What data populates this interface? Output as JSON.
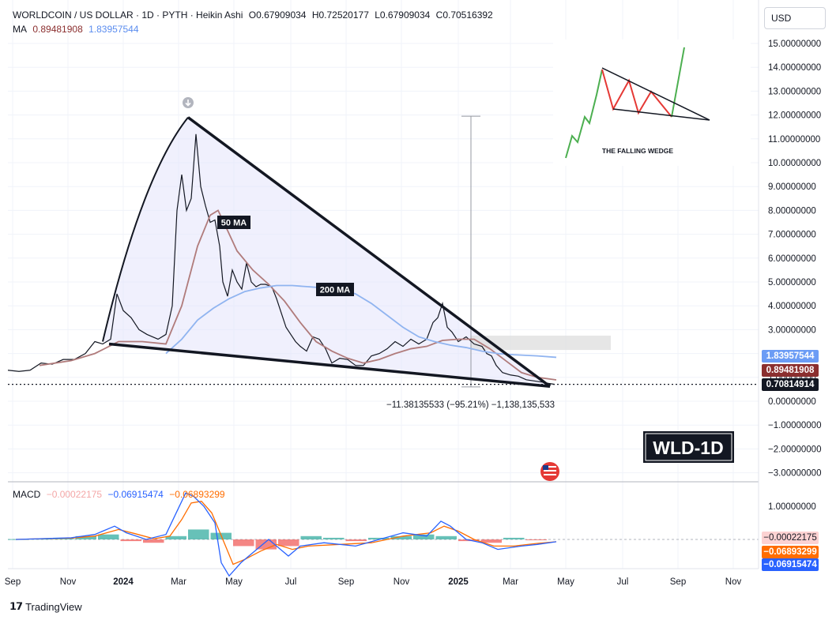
{
  "header": {
    "symbol": "WORLDCOIN / US DOLLAR · 1D · PYTH · Heikin Ashi",
    "o": "O0.67909034",
    "h": "H0.72520177",
    "l": "L0.67909034",
    "c": "C0.70516392",
    "ma_label": "MA",
    "ma_value1": "0.89481908",
    "ma_value2": "1.83957544"
  },
  "currency_button": "USD",
  "macd_header": {
    "label": "MACD",
    "v1": "−0.00022175",
    "v2": "−0.06915474",
    "v3": "−0.06893299"
  },
  "annotations": {
    "ma50": "50 MA",
    "ma200": "200 MA",
    "measure": "−11.38135533 (−95.21%) −1,138,135,533",
    "ticker_box": "WLD-1D",
    "inset_caption": "THE FALLING WEDGE"
  },
  "price_badges": {
    "ma200": "1.83957544",
    "ma50": "0.89481908",
    "last": "0.70814914"
  },
  "macd_badges": {
    "hist": "−0.00022175",
    "signal": "−0.06893299",
    "macd": "−0.06915474"
  },
  "brand": "TradingView",
  "colors": {
    "price": "#131722",
    "ma50": "#b07b7b",
    "ma200": "#90b4f0",
    "wedge_fill": "#e3e3fb",
    "macd_line": "#2962ff",
    "signal_line": "#ff6d00",
    "hist_pos": "#26a69a",
    "hist_neg": "#ef5350",
    "badge_ma200": "#6b9cf5",
    "badge_ma50": "#8b2f2f",
    "badge_last": "#131722"
  },
  "chart_data": {
    "type": "line",
    "title": "WORLDCOIN / US DOLLAR · 1D · PYTH · Heikin Ashi",
    "price_axis": {
      "ticks": [
        "15.00000000",
        "14.00000000",
        "13.00000000",
        "12.00000000",
        "11.00000000",
        "10.00000000",
        "9.00000000",
        "8.00000000",
        "7.00000000",
        "6.00000000",
        "5.00000000",
        "4.00000000",
        "3.00000000",
        "2.00000000",
        "1.00000000",
        "0.00000000",
        "−1.00000000",
        "−2.00000000",
        "−3.00000000"
      ],
      "ylim": [
        -3.3,
        15.6
      ]
    },
    "macd_axis": {
      "ticks": [
        "1.00000000"
      ]
    },
    "time_axis": {
      "ticks": [
        "Sep",
        "Nov",
        "2024",
        "Mar",
        "May",
        "Jul",
        "Sep",
        "Nov",
        "2025",
        "Mar",
        "May",
        "Jul",
        "Sep",
        "Nov"
      ],
      "bold": [
        "2024",
        "2025"
      ]
    },
    "series": [
      {
        "name": "Price",
        "points": [
          [
            0,
            1.3
          ],
          [
            14,
            1.25
          ],
          [
            28,
            1.3
          ],
          [
            42,
            1.6
          ],
          [
            56,
            1.55
          ],
          [
            70,
            1.75
          ],
          [
            84,
            1.75
          ],
          [
            98,
            2.0
          ],
          [
            110,
            2.5
          ],
          [
            120,
            2.4
          ],
          [
            130,
            2.6
          ],
          [
            138,
            4.5
          ],
          [
            146,
            3.8
          ],
          [
            156,
            3.5
          ],
          [
            166,
            3.0
          ],
          [
            176,
            2.8
          ],
          [
            190,
            2.6
          ],
          [
            200,
            2.8
          ],
          [
            208,
            4.0
          ],
          [
            214,
            8.0
          ],
          [
            220,
            9.5
          ],
          [
            226,
            8.0
          ],
          [
            232,
            8.5
          ],
          [
            238,
            11.2
          ],
          [
            244,
            9.0
          ],
          [
            250,
            8.2
          ],
          [
            256,
            7.5
          ],
          [
            262,
            7.6
          ],
          [
            268,
            6.5
          ],
          [
            272,
            5.0
          ],
          [
            278,
            4.4
          ],
          [
            284,
            5.5
          ],
          [
            290,
            5.0
          ],
          [
            296,
            4.7
          ],
          [
            302,
            5.8
          ],
          [
            308,
            5.0
          ],
          [
            314,
            4.8
          ],
          [
            320,
            4.9
          ],
          [
            326,
            4.9
          ],
          [
            334,
            4.8
          ],
          [
            340,
            4.3
          ],
          [
            346,
            3.7
          ],
          [
            352,
            3.1
          ],
          [
            358,
            2.8
          ],
          [
            364,
            2.5
          ],
          [
            370,
            2.3
          ],
          [
            378,
            2.1
          ],
          [
            386,
            2.7
          ],
          [
            394,
            2.6
          ],
          [
            402,
            2.2
          ],
          [
            410,
            1.6
          ],
          [
            420,
            1.8
          ],
          [
            430,
            1.75
          ],
          [
            440,
            1.5
          ],
          [
            450,
            1.5
          ],
          [
            460,
            1.9
          ],
          [
            470,
            2.0
          ],
          [
            480,
            2.2
          ],
          [
            490,
            2.5
          ],
          [
            500,
            2.3
          ],
          [
            510,
            2.6
          ],
          [
            520,
            2.4
          ],
          [
            530,
            2.6
          ],
          [
            538,
            3.3
          ],
          [
            544,
            3.5
          ],
          [
            550,
            4.1
          ],
          [
            556,
            3.1
          ],
          [
            562,
            2.9
          ],
          [
            570,
            2.5
          ],
          [
            580,
            2.7
          ],
          [
            590,
            2.4
          ],
          [
            600,
            2.3
          ],
          [
            606,
            2.0
          ],
          [
            612,
            1.9
          ],
          [
            618,
            1.5
          ],
          [
            626,
            1.2
          ],
          [
            636,
            1.1
          ],
          [
            646,
            1.05
          ],
          [
            656,
            0.9
          ],
          [
            666,
            0.85
          ],
          [
            676,
            0.8
          ],
          [
            684,
            0.75
          ],
          [
            692,
            0.70816
          ]
        ]
      },
      {
        "name": "50 MA",
        "points": [
          [
            40,
            1.5
          ],
          [
            80,
            1.7
          ],
          [
            110,
            2.0
          ],
          [
            140,
            2.5
          ],
          [
            170,
            2.5
          ],
          [
            200,
            2.4
          ],
          [
            220,
            4.0
          ],
          [
            240,
            6.5
          ],
          [
            256,
            7.8
          ],
          [
            266,
            8.0
          ],
          [
            276,
            7.3
          ],
          [
            290,
            6.3
          ],
          [
            310,
            5.5
          ],
          [
            330,
            4.9
          ],
          [
            350,
            4.2
          ],
          [
            370,
            3.3
          ],
          [
            390,
            2.5
          ],
          [
            410,
            2.1
          ],
          [
            430,
            1.8
          ],
          [
            450,
            1.6
          ],
          [
            470,
            1.75
          ],
          [
            490,
            2.0
          ],
          [
            510,
            2.2
          ],
          [
            530,
            2.3
          ],
          [
            550,
            2.55
          ],
          [
            570,
            2.6
          ],
          [
            590,
            2.6
          ],
          [
            610,
            2.2
          ],
          [
            630,
            1.7
          ],
          [
            650,
            1.2
          ],
          [
            670,
            1.0
          ],
          [
            694,
            0.89481908
          ]
        ]
      },
      {
        "name": "200 MA",
        "points": [
          [
            200,
            2.0
          ],
          [
            220,
            2.6
          ],
          [
            240,
            3.4
          ],
          [
            260,
            3.9
          ],
          [
            280,
            4.3
          ],
          [
            300,
            4.6
          ],
          [
            320,
            4.75
          ],
          [
            340,
            4.85
          ],
          [
            360,
            4.85
          ],
          [
            380,
            4.8
          ],
          [
            400,
            4.75
          ],
          [
            420,
            4.7
          ],
          [
            440,
            4.5
          ],
          [
            460,
            4.1
          ],
          [
            480,
            3.6
          ],
          [
            500,
            3.1
          ],
          [
            520,
            2.7
          ],
          [
            540,
            2.5
          ],
          [
            560,
            2.35
          ],
          [
            580,
            2.25
          ],
          [
            600,
            2.1
          ],
          [
            620,
            2.0
          ],
          [
            640,
            1.95
          ],
          [
            670,
            1.9
          ],
          [
            694,
            1.83957544
          ]
        ]
      }
    ],
    "macd": {
      "macd_line": [
        [
          10,
          0
        ],
        [
          40,
          0.02
        ],
        [
          80,
          0.05
        ],
        [
          110,
          0.15
        ],
        [
          135,
          0.4
        ],
        [
          150,
          0.2
        ],
        [
          175,
          0
        ],
        [
          200,
          0.15
        ],
        [
          215,
          0.9
        ],
        [
          225,
          1.4
        ],
        [
          235,
          1.3
        ],
        [
          248,
          1.0
        ],
        [
          262,
          0.5
        ],
        [
          270,
          -0.7
        ],
        [
          280,
          -1.1
        ],
        [
          295,
          -0.7
        ],
        [
          310,
          -0.4
        ],
        [
          330,
          0
        ],
        [
          345,
          -0.3
        ],
        [
          355,
          -0.5
        ],
        [
          370,
          -0.2
        ],
        [
          400,
          -0.1
        ],
        [
          440,
          -0.2
        ],
        [
          470,
          0
        ],
        [
          500,
          0.2
        ],
        [
          530,
          0.1
        ],
        [
          548,
          0.55
        ],
        [
          560,
          0.4
        ],
        [
          580,
          0
        ],
        [
          600,
          -0.1
        ],
        [
          620,
          -0.3
        ],
        [
          650,
          -0.2
        ],
        [
          670,
          -0.15
        ],
        [
          694,
          -0.06915474
        ]
      ],
      "signal_line": [
        [
          10,
          0
        ],
        [
          40,
          0.02
        ],
        [
          80,
          0.04
        ],
        [
          110,
          0.1
        ],
        [
          140,
          0.3
        ],
        [
          160,
          0.18
        ],
        [
          185,
          0.02
        ],
        [
          205,
          0.1
        ],
        [
          220,
          0.6
        ],
        [
          232,
          1.1
        ],
        [
          245,
          1.15
        ],
        [
          258,
          0.8
        ],
        [
          272,
          0.0
        ],
        [
          285,
          -0.75
        ],
        [
          300,
          -0.6
        ],
        [
          320,
          -0.35
        ],
        [
          340,
          -0.15
        ],
        [
          360,
          -0.3
        ],
        [
          380,
          -0.2
        ],
        [
          420,
          -0.15
        ],
        [
          460,
          -0.1
        ],
        [
          500,
          0.1
        ],
        [
          535,
          0.2
        ],
        [
          552,
          0.4
        ],
        [
          570,
          0.25
        ],
        [
          590,
          0.0
        ],
        [
          615,
          -0.2
        ],
        [
          640,
          -0.2
        ],
        [
          670,
          -0.12
        ],
        [
          694,
          -0.06893299
        ]
      ],
      "histogram_sample": [
        0.01,
        0.02,
        0.05,
        0.1,
        0.15,
        -0.05,
        -0.1,
        0.1,
        0.3,
        0.2,
        -0.2,
        -0.3,
        -0.2,
        0.1,
        0.05,
        -0.05,
        0.05,
        0.1,
        0.15,
        0.1,
        -0.05,
        -0.1,
        0.05,
        -0.00022175
      ]
    }
  }
}
